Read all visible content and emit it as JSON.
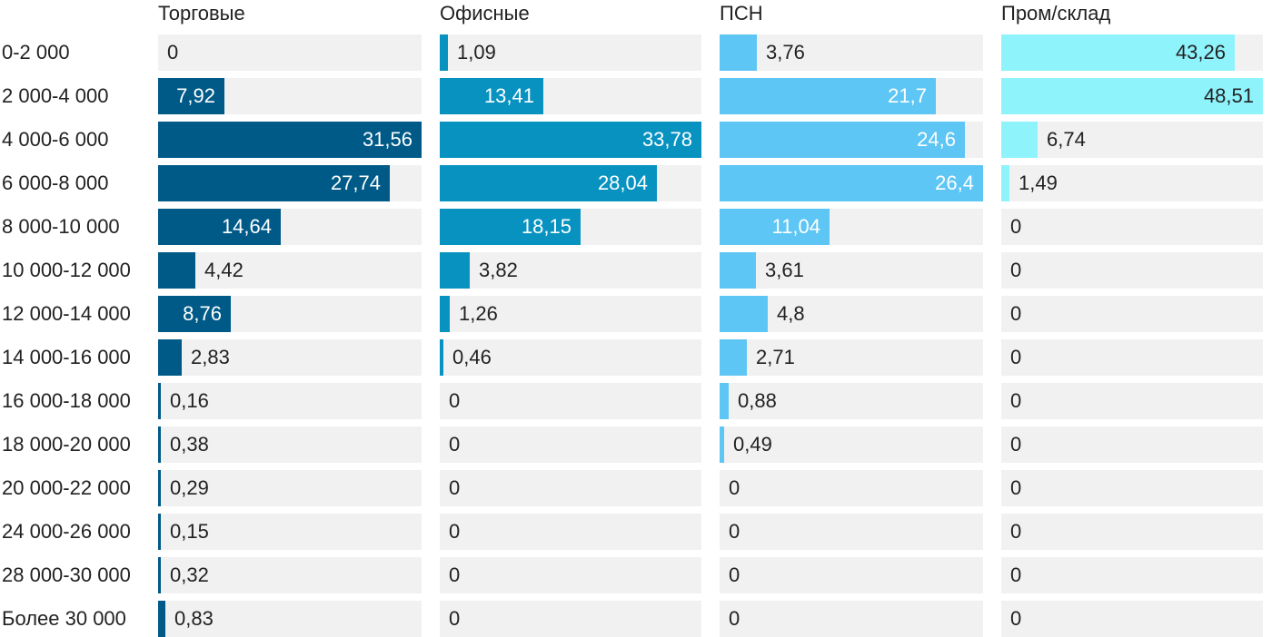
{
  "chart_data": {
    "type": "bar",
    "orientation": "horizontal",
    "layout": "small-multiples",
    "categories": [
      "0-2 000",
      "2 000-4 000",
      "4 000-6 000",
      "6 000-8 000",
      "8 000-10 000",
      "10 000-12 000",
      "12 000-14 000",
      "14 000-16 000",
      "16 000-18 000",
      "18 000-20 000",
      "20 000-22 000",
      "24 000-26 000",
      "28 000-30 000",
      "Более 30 000"
    ],
    "series": [
      {
        "name": "Торговые",
        "color": "#005a87",
        "max": 31.56,
        "values": [
          0,
          7.92,
          31.56,
          27.74,
          14.64,
          4.42,
          8.76,
          2.83,
          0.16,
          0.38,
          0.29,
          0.15,
          0.32,
          0.83
        ],
        "labels": [
          "0",
          "7,92",
          "31,56",
          "27,74",
          "14,64",
          "4,42",
          "8,76",
          "2,83",
          "0,16",
          "0,38",
          "0,29",
          "0,15",
          "0,32",
          "0,83"
        ]
      },
      {
        "name": "Офисные",
        "color": "#0892c0",
        "max": 33.78,
        "values": [
          1.09,
          13.41,
          33.78,
          28.04,
          18.15,
          3.82,
          1.26,
          0.46,
          0,
          0,
          0,
          0,
          0,
          0
        ],
        "labels": [
          "1,09",
          "13,41",
          "33,78",
          "28,04",
          "18,15",
          "3,82",
          "1,26",
          "0,46",
          "0",
          "0",
          "0",
          "0",
          "0",
          "0"
        ]
      },
      {
        "name": "ПСН",
        "color": "#5ec6f4",
        "max": 26.4,
        "values": [
          3.76,
          21.7,
          24.6,
          26.4,
          11.04,
          3.61,
          4.8,
          2.71,
          0.88,
          0.49,
          0,
          0,
          0,
          0
        ],
        "labels": [
          "3,76",
          "21,7",
          "24,6",
          "26,4",
          "11,04",
          "3,61",
          "4,8",
          "2,71",
          "0,88",
          "0,49",
          "0",
          "0",
          "0",
          "0"
        ]
      },
      {
        "name": "Пром/склад",
        "color": "#8ff3fc",
        "max": 48.51,
        "values": [
          43.26,
          48.51,
          6.74,
          1.49,
          0,
          0,
          0,
          0,
          0,
          0,
          0,
          0,
          0,
          0
        ],
        "labels": [
          "43,26",
          "48,51",
          "6,74",
          "1,49",
          "0",
          "0",
          "0",
          "0",
          "0",
          "0",
          "0",
          "0",
          "0",
          "0"
        ]
      }
    ],
    "grid": false,
    "legend": "none"
  }
}
